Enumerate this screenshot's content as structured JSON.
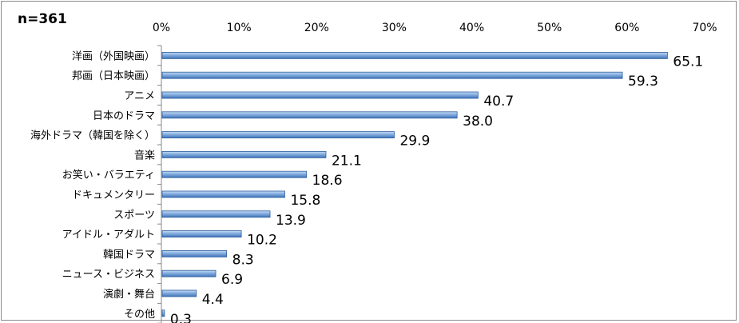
{
  "sample_label": "n=361",
  "chart_data": {
    "type": "bar",
    "orientation": "horizontal",
    "title": "",
    "xlabel": "",
    "ylabel": "",
    "xlim": [
      0,
      70
    ],
    "x_ticks": [
      "0%",
      "10%",
      "20%",
      "30%",
      "40%",
      "50%",
      "60%",
      "70%"
    ],
    "grid": false,
    "categories": [
      "洋画（外国映画）",
      "邦画（日本映画）",
      "アニメ",
      "日本のドラマ",
      "海外ドラマ（韓国を除く）",
      "音楽",
      "お笑い・バラエティ",
      "ドキュメンタリー",
      "スポーツ",
      "アイドル・アダルト",
      "韓国ドラマ",
      "ニュース・ビジネス",
      "演劇・舞台",
      "その他"
    ],
    "values": [
      65.1,
      59.3,
      40.7,
      38.0,
      29.9,
      21.1,
      18.6,
      15.8,
      13.9,
      10.2,
      8.3,
      6.9,
      4.4,
      0.3
    ],
    "value_labels": [
      "65.1",
      "59.3",
      "40.7",
      "38.0",
      "29.9",
      "21.1",
      "18.6",
      "15.8",
      "13.9",
      "10.2",
      "8.3",
      "6.9",
      "4.4",
      "0.3"
    ],
    "bar_color": "#5b8fd0"
  }
}
